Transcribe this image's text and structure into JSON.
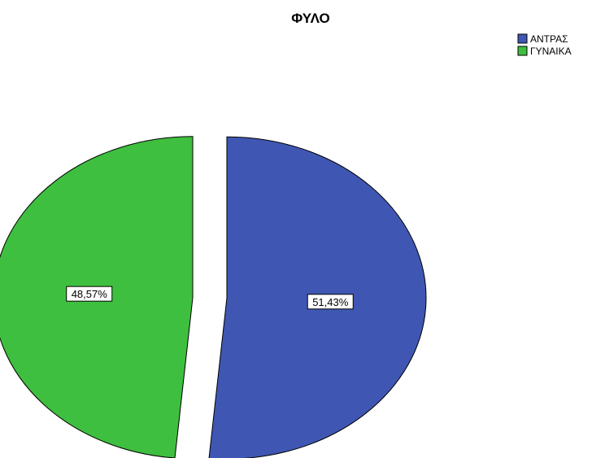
{
  "chart_data": {
    "type": "pie",
    "title": "ΦΥΛΟ",
    "categories": [
      "ΑΝΤΡΑΣ",
      "ΓΥΝΑΙΚΑ"
    ],
    "values": [
      51.43,
      48.57
    ],
    "data_labels": [
      "51,43%",
      "48,57%"
    ],
    "colors": [
      "#3F57B2",
      "#3FBF3F"
    ],
    "exploded": true,
    "legend": {
      "placement": "top-right",
      "entries": [
        "ΑΝΤΡΑΣ",
        "ΓΥΝΑΙΚΑ"
      ]
    }
  }
}
